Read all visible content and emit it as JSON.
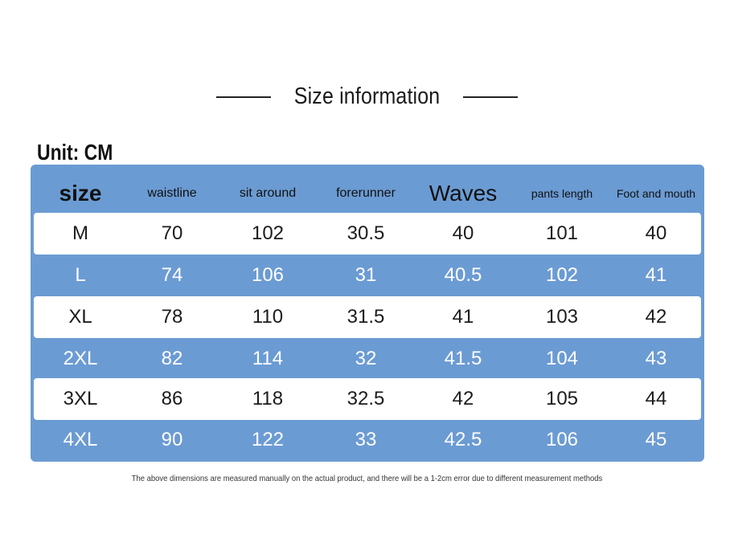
{
  "title": "Size information",
  "unit_label": "Unit: CM",
  "headers": [
    "size",
    "waistline",
    "sit around",
    "forerunner",
    "Waves",
    "pants length",
    "Foot and mouth"
  ],
  "rows": [
    [
      "M",
      "70",
      "102",
      "30.5",
      "40",
      "101",
      "40"
    ],
    [
      "L",
      "74",
      "106",
      "31",
      "40.5",
      "102",
      "41"
    ],
    [
      "XL",
      "78",
      "110",
      "31.5",
      "41",
      "103",
      "42"
    ],
    [
      "2XL",
      "82",
      "114",
      "32",
      "41.5",
      "104",
      "43"
    ],
    [
      "3XL",
      "86",
      "118",
      "32.5",
      "42",
      "105",
      "44"
    ],
    [
      "4XL",
      "90",
      "122",
      "33",
      "42.5",
      "106",
      "45"
    ]
  ],
  "footnote": "The above dimensions are measured manually on the actual product, and there will be a 1-2cm error due to different measurement methods",
  "colors": {
    "table_blue": "#6b9bd3",
    "white_row": "#ffffff"
  }
}
